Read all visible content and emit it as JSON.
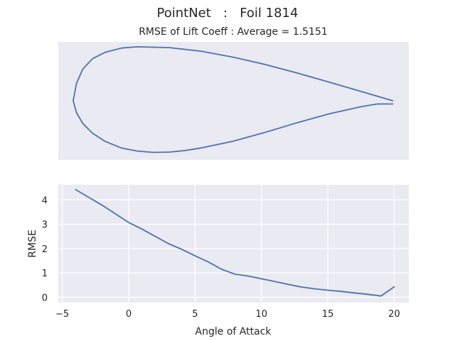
{
  "figure": {
    "suptitle": "PointNet   :   Foil 1814",
    "top_title": "RMSE of Lift Coeff : Average = 1.5151"
  },
  "colors": {
    "axes_bg": "#eaeaf2",
    "grid": "#ffffff",
    "line": "#4c72b0",
    "text": "#262626"
  },
  "chart_data": [
    {
      "type": "line",
      "description_role": "airfoil-profile",
      "axes_visible": false,
      "upper_surface": {
        "x": [
          1.0,
          0.95,
          0.9,
          0.8,
          0.7,
          0.6,
          0.5,
          0.4,
          0.3,
          0.2,
          0.15,
          0.1,
          0.06,
          0.03,
          0.01,
          0.0
        ],
        "y": [
          0.0,
          0.018,
          0.036,
          0.072,
          0.107,
          0.14,
          0.168,
          0.191,
          0.205,
          0.208,
          0.203,
          0.187,
          0.162,
          0.122,
          0.067,
          0.0
        ]
      },
      "lower_surface": {
        "x": [
          0.0,
          0.01,
          0.03,
          0.06,
          0.1,
          0.15,
          0.2,
          0.25,
          0.3,
          0.35,
          0.4,
          0.5,
          0.6,
          0.7,
          0.8,
          0.9,
          0.95,
          1.0
        ],
        "y": [
          0.0,
          -0.045,
          -0.087,
          -0.124,
          -0.156,
          -0.181,
          -0.193,
          -0.198,
          -0.197,
          -0.191,
          -0.181,
          -0.155,
          -0.121,
          -0.084,
          -0.05,
          -0.022,
          -0.012,
          -0.012
        ]
      }
    },
    {
      "type": "line",
      "xlabel": "Angle of Attack",
      "ylabel": "RMSE",
      "xlim": [
        -5.3,
        21.1
      ],
      "ylim": [
        -0.22,
        4.62
      ],
      "xticks": [
        -5,
        0,
        5,
        10,
        15,
        20
      ],
      "yticks": [
        0,
        1,
        2,
        3,
        4
      ],
      "grid": true,
      "series": [
        {
          "x": [
            -4,
            -2,
            0,
            1,
            2,
            3,
            4,
            5,
            6,
            7,
            8,
            9,
            10,
            11,
            12,
            13,
            14,
            15,
            16,
            17,
            18,
            19,
            20
          ],
          "y": [
            4.42,
            3.78,
            3.07,
            2.8,
            2.5,
            2.2,
            1.97,
            1.7,
            1.45,
            1.15,
            0.95,
            0.87,
            0.76,
            0.65,
            0.53,
            0.42,
            0.35,
            0.29,
            0.24,
            0.18,
            0.12,
            0.05,
            0.43
          ]
        }
      ]
    }
  ]
}
